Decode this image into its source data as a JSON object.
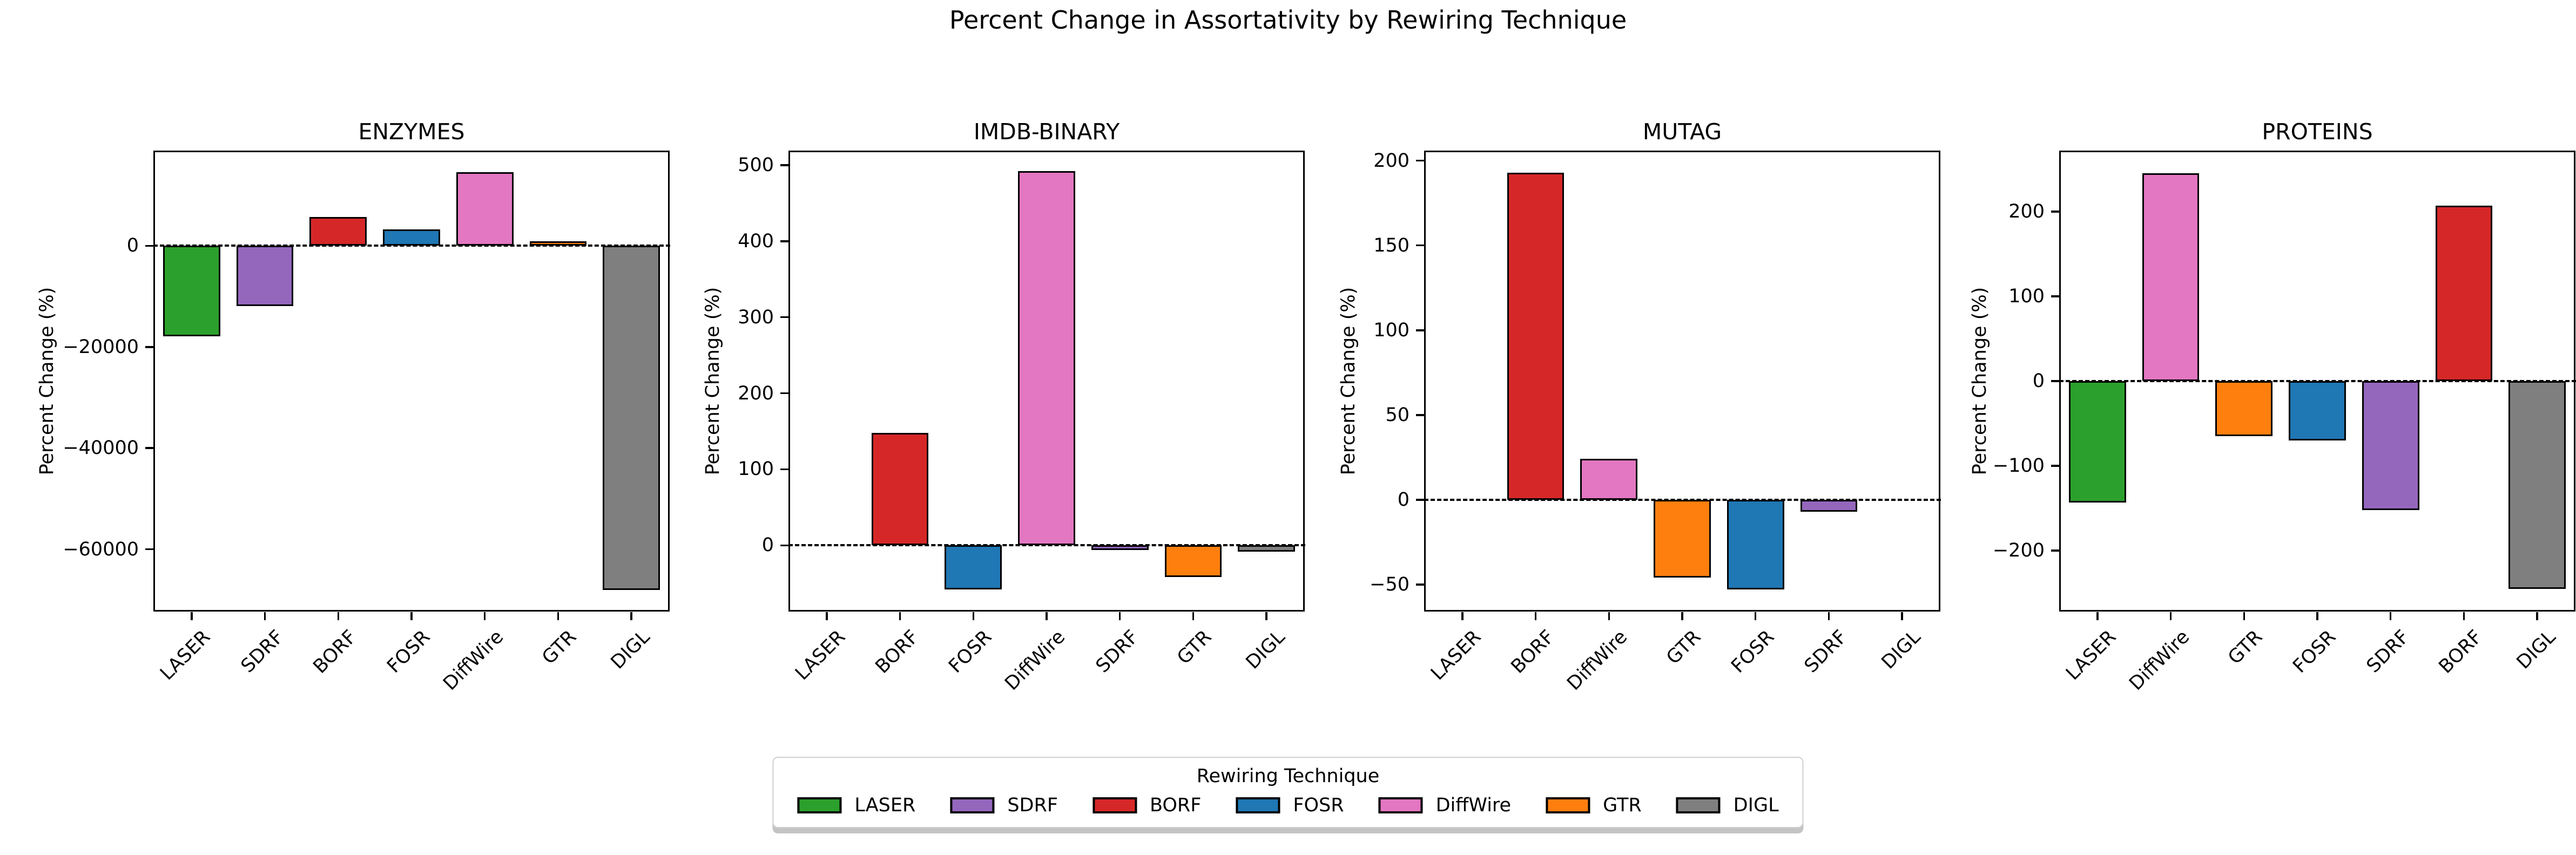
{
  "title": "Percent Change in Assortativity by Rewiring Technique",
  "legend": {
    "title": "Rewiring Technique",
    "entries": [
      {
        "label": "LASER",
        "color": "#2ca02c"
      },
      {
        "label": "SDRF",
        "color": "#9467bd"
      },
      {
        "label": "BORF",
        "color": "#d62728"
      },
      {
        "label": "FOSR",
        "color": "#1f77b4"
      },
      {
        "label": "DiffWire",
        "color": "#e377c2"
      },
      {
        "label": "GTR",
        "color": "#ff7f0e"
      },
      {
        "label": "DIGL",
        "color": "#7f7f7f"
      }
    ]
  },
  "chart_data": [
    {
      "type": "bar",
      "title": "ENZYMES",
      "ylabel": "Percent Change (%)",
      "categories": [
        "LASER",
        "SDRF",
        "BORF",
        "FOSR",
        "DiffWire",
        "GTR",
        "DIGL"
      ],
      "values": [
        -17900,
        -11900,
        5700,
        3200,
        14500,
        900,
        -68000
      ],
      "yticks": [
        0,
        -20000,
        -40000,
        -60000
      ],
      "ylim": [
        -72000,
        18500
      ],
      "zero_line": true,
      "grid": false
    },
    {
      "type": "bar",
      "title": "IMDB-BINARY",
      "ylabel": "Percent Change (%)",
      "categories": [
        "LASER",
        "BORF",
        "FOSR",
        "DiffWire",
        "SDRF",
        "GTR",
        "DIGL"
      ],
      "values": [
        0,
        148,
        -58,
        492,
        -6,
        -42,
        -8
      ],
      "yticks": [
        500,
        400,
        300,
        200,
        100,
        0
      ],
      "ylim": [
        -85,
        517
      ],
      "zero_line": true,
      "grid": false
    },
    {
      "type": "bar",
      "title": "MUTAG",
      "ylabel": "Percent Change (%)",
      "categories": [
        "LASER",
        "BORF",
        "DiffWire",
        "GTR",
        "FOSR",
        "SDRF",
        "DIGL"
      ],
      "values": [
        0,
        193,
        24,
        -46,
        -53,
        -7,
        0
      ],
      "yticks": [
        200,
        150,
        100,
        50,
        0,
        -50
      ],
      "ylim": [
        -65,
        205
      ],
      "zero_line": true,
      "grid": false
    },
    {
      "type": "bar",
      "title": "PROTEINS",
      "ylabel": "Percent Change (%)",
      "categories": [
        "LASER",
        "DiffWire",
        "GTR",
        "FOSR",
        "SDRF",
        "BORF",
        "DIGL"
      ],
      "values": [
        -143,
        245,
        -65,
        -70,
        -152,
        207,
        -245
      ],
      "yticks": [
        200,
        100,
        0,
        -100,
        -200
      ],
      "ylim": [
        -270,
        270
      ],
      "zero_line": true,
      "grid": false
    }
  ]
}
